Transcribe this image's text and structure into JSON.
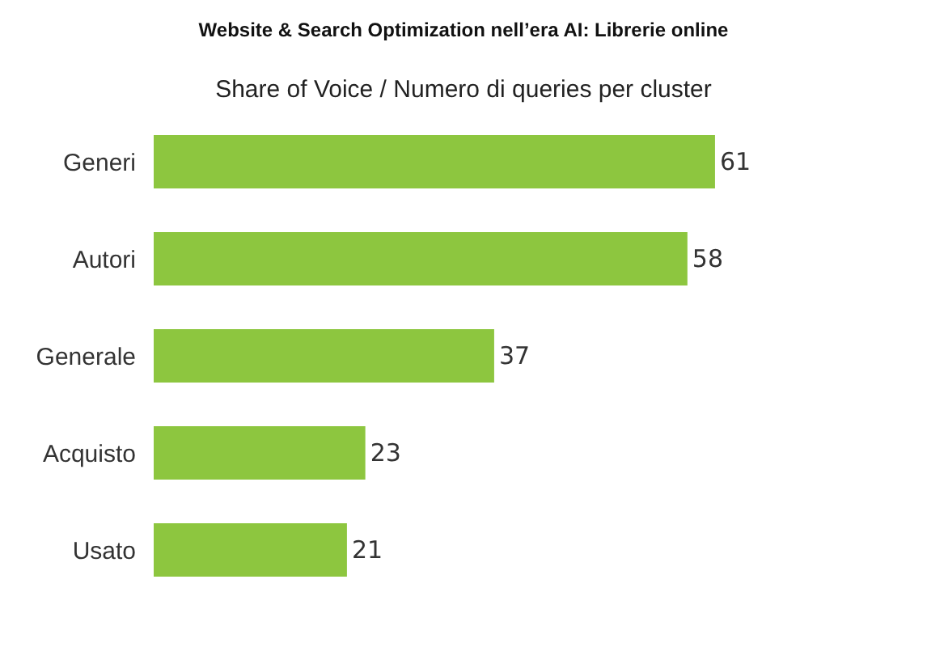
{
  "chart_data": {
    "type": "bar",
    "orientation": "horizontal",
    "title": "Website & Search Optimization nell’era AI: Librerie online",
    "subtitle": "Share of Voice / Numero di queries per cluster",
    "categories": [
      "Generi",
      "Autori",
      "Generale",
      "Acquisto",
      "Usato"
    ],
    "values": [
      61,
      58,
      37,
      23,
      21
    ],
    "color": "#8dc63f",
    "data_labels": true
  }
}
